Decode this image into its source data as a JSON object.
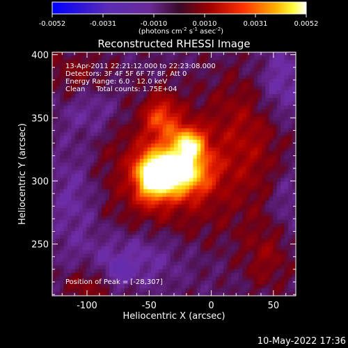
{
  "colorbar": {
    "ticks": [
      "-0.0052",
      "-0.0031",
      "-0.0010",
      "0.0010",
      "0.0031",
      "0.0052"
    ],
    "units_pre": "(photons cm",
    "units_exp1": "-2",
    "units_mid1": " s",
    "units_exp2": "-1",
    "units_mid2": " asec",
    "units_exp3": "-2",
    "units_post": ")"
  },
  "footer": {
    "date": "10-May-2022 17:36"
  },
  "colors": {
    "background": "#000000",
    "text": "#ffffff"
  },
  "chart_data": {
    "type": "heatmap",
    "title": "Reconstructed RHESSI Image",
    "xlabel": "Heliocentric X (arcsec)",
    "ylabel": "Heliocentric Y (arcsec)",
    "xlim": [
      -128,
      68
    ],
    "ylim": [
      209,
      402
    ],
    "x_ticks": [
      -100,
      -50,
      0,
      50
    ],
    "y_ticks": [
      250,
      300,
      350,
      400
    ],
    "x_tick_labels": [
      "-100",
      "-50",
      "0",
      "50"
    ],
    "y_tick_labels": [
      "250",
      "300",
      "350",
      "400"
    ],
    "zlim": [
      -0.0052,
      0.0052
    ],
    "colormap": "blue-purple-red-yellow-white",
    "annotations": [
      "13-Apr-2011 22:21:12.000 to 22:23:08.000",
      "Detectors: 3F 4F 5F 6F 7F 8F, Att 0",
      "Energy Range: 6.0 - 12.0 keV",
      "Clean     Total counts: 1.75E+04"
    ],
    "peak_label": "Position of Peak = [-28,307]",
    "peak": {
      "x": -28,
      "y": 307
    },
    "intensity_features": [
      {
        "name": "main_core",
        "x": -28,
        "y": 307,
        "value": 0.0052,
        "sigma_x": 17,
        "sigma_y": 13
      },
      {
        "name": "west_lobe",
        "x": -48,
        "y": 303,
        "value": 0.0037,
        "sigma_x": 9,
        "sigma_y": 13
      },
      {
        "name": "north_lobe",
        "x": -18,
        "y": 330,
        "value": 0.0036,
        "sigma_x": 9,
        "sigma_y": 9
      },
      {
        "name": "upper_ridge",
        "x": -40,
        "y": 350,
        "value": 0.0024,
        "sigma_x": 10,
        "sigma_y": 12
      },
      {
        "name": "halo",
        "x": -35,
        "y": 305,
        "value": 0.0015,
        "sigma_x": 48,
        "sigma_y": 40
      },
      {
        "name": "ne_arc",
        "x": 30,
        "y": 340,
        "value": 0.0012,
        "sigma_x": 22,
        "sigma_y": 36
      },
      {
        "name": "se_patch",
        "x": 45,
        "y": 240,
        "value": 0.0011,
        "sigma_x": 14,
        "sigma_y": 20
      },
      {
        "name": "sw_patch",
        "x": -95,
        "y": 218,
        "value": 0.0012,
        "sigma_x": 18,
        "sigma_y": 10
      },
      {
        "name": "upper_left",
        "x": -110,
        "y": 385,
        "value": 0.0009,
        "sigma_x": 18,
        "sigma_y": 14
      },
      {
        "name": "west_neg",
        "x": -110,
        "y": 290,
        "value": -0.0011,
        "sigma_x": 16,
        "sigma_y": 30
      },
      {
        "name": "nw_neg",
        "x": -95,
        "y": 355,
        "value": -0.0009,
        "sigma_x": 18,
        "sigma_y": 14
      },
      {
        "name": "south_neg",
        "x": -60,
        "y": 240,
        "value": -0.0012,
        "sigma_x": 28,
        "sigma_y": 16
      },
      {
        "name": "ne_neg",
        "x": 55,
        "y": 375,
        "value": -0.0013,
        "sigma_x": 14,
        "sigma_y": 22
      },
      {
        "name": "east_neg",
        "x": 60,
        "y": 285,
        "value": -0.0008,
        "sigma_x": 10,
        "sigma_y": 20
      },
      {
        "name": "sw_min",
        "x": -75,
        "y": 226,
        "value": -0.0014,
        "sigma_x": 8,
        "sigma_y": 8
      }
    ]
  }
}
